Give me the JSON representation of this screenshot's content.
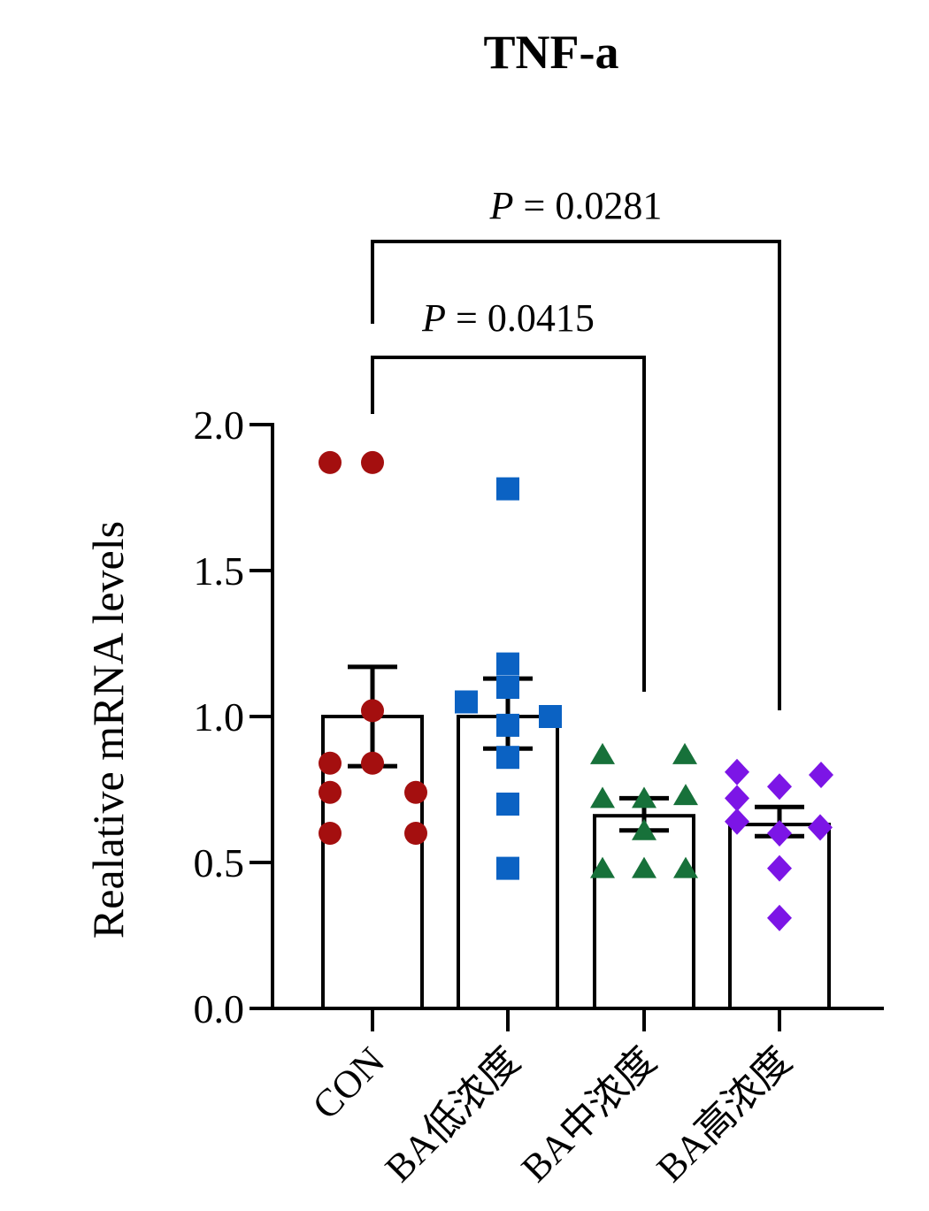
{
  "chart_data": {
    "type": "bar",
    "title": "TNF-a",
    "ylabel": "Realative mRNA levels",
    "xlabel": "",
    "ylim": [
      0,
      2.0
    ],
    "ytick_labels": [
      "0.0",
      "0.5",
      "1.0",
      "1.5",
      "2.0"
    ],
    "ytick_values": [
      0,
      0.5,
      1.0,
      1.5,
      2.0
    ],
    "grid": false,
    "legend": "none",
    "x_tick_rotation_deg": 45,
    "bar_fill_color": "#FFFFFF",
    "bar_outline_color": "#000000",
    "error_bar_style": "mean-with-sem-caps",
    "categories": [
      "CON",
      "BA低浓度",
      "BA中浓度",
      "BA高浓度"
    ],
    "series": [
      {
        "name": "CON",
        "marker": "circle",
        "color": "#A40F0F",
        "mean": 1.0,
        "err_low": 0.83,
        "err_high": 1.17,
        "points": [
          {
            "dx": -48,
            "value": 1.87
          },
          {
            "dx": 0,
            "value": 1.87
          },
          {
            "dx": 0,
            "value": 1.02
          },
          {
            "dx": -48,
            "value": 0.84
          },
          {
            "dx": 0,
            "value": 0.84
          },
          {
            "dx": -48,
            "value": 0.74
          },
          {
            "dx": 49,
            "value": 0.74
          },
          {
            "dx": -48,
            "value": 0.6
          },
          {
            "dx": 49,
            "value": 0.6
          }
        ]
      },
      {
        "name": "BA低浓度",
        "marker": "square",
        "color": "#0B62C3",
        "mean": 1.0,
        "err_low": 0.89,
        "err_high": 1.13,
        "points": [
          {
            "dx": 0,
            "value": 1.78
          },
          {
            "dx": 0,
            "value": 1.18
          },
          {
            "dx": 0,
            "value": 1.1
          },
          {
            "dx": -47,
            "value": 1.05
          },
          {
            "dx": 48,
            "value": 1.0
          },
          {
            "dx": 0,
            "value": 0.97
          },
          {
            "dx": 0,
            "value": 0.86
          },
          {
            "dx": 0,
            "value": 0.7
          },
          {
            "dx": 0,
            "value": 0.48
          }
        ]
      },
      {
        "name": "BA中浓度",
        "marker": "triangle",
        "color": "#17713A",
        "mean": 0.66,
        "err_low": 0.61,
        "err_high": 0.72,
        "points": [
          {
            "dx": -47,
            "value": 0.87
          },
          {
            "dx": 46,
            "value": 0.87
          },
          {
            "dx": 47,
            "value": 0.73
          },
          {
            "dx": -47,
            "value": 0.72
          },
          {
            "dx": 0,
            "value": 0.72
          },
          {
            "dx": 0,
            "value": 0.61
          },
          {
            "dx": -47,
            "value": 0.48
          },
          {
            "dx": 0,
            "value": 0.48
          },
          {
            "dx": 47,
            "value": 0.48
          }
        ]
      },
      {
        "name": "BA高浓度",
        "marker": "diamond",
        "color": "#7C15E6",
        "mean": 0.63,
        "err_low": 0.59,
        "err_high": 0.69,
        "points": [
          {
            "dx": -48,
            "value": 0.81
          },
          {
            "dx": 47,
            "value": 0.8
          },
          {
            "dx": 0,
            "value": 0.76
          },
          {
            "dx": -48,
            "value": 0.72
          },
          {
            "dx": -48,
            "value": 0.64
          },
          {
            "dx": 46,
            "value": 0.62
          },
          {
            "dx": 0,
            "value": 0.6
          },
          {
            "dx": 0,
            "value": 0.48
          },
          {
            "dx": 0,
            "value": 0.31
          }
        ]
      }
    ],
    "annotations": [
      {
        "text": "P = 0.0281",
        "from": "CON",
        "to": "BA高浓度"
      },
      {
        "text": "P = 0.0415",
        "from": "CON",
        "to": "BA中浓度"
      }
    ]
  }
}
